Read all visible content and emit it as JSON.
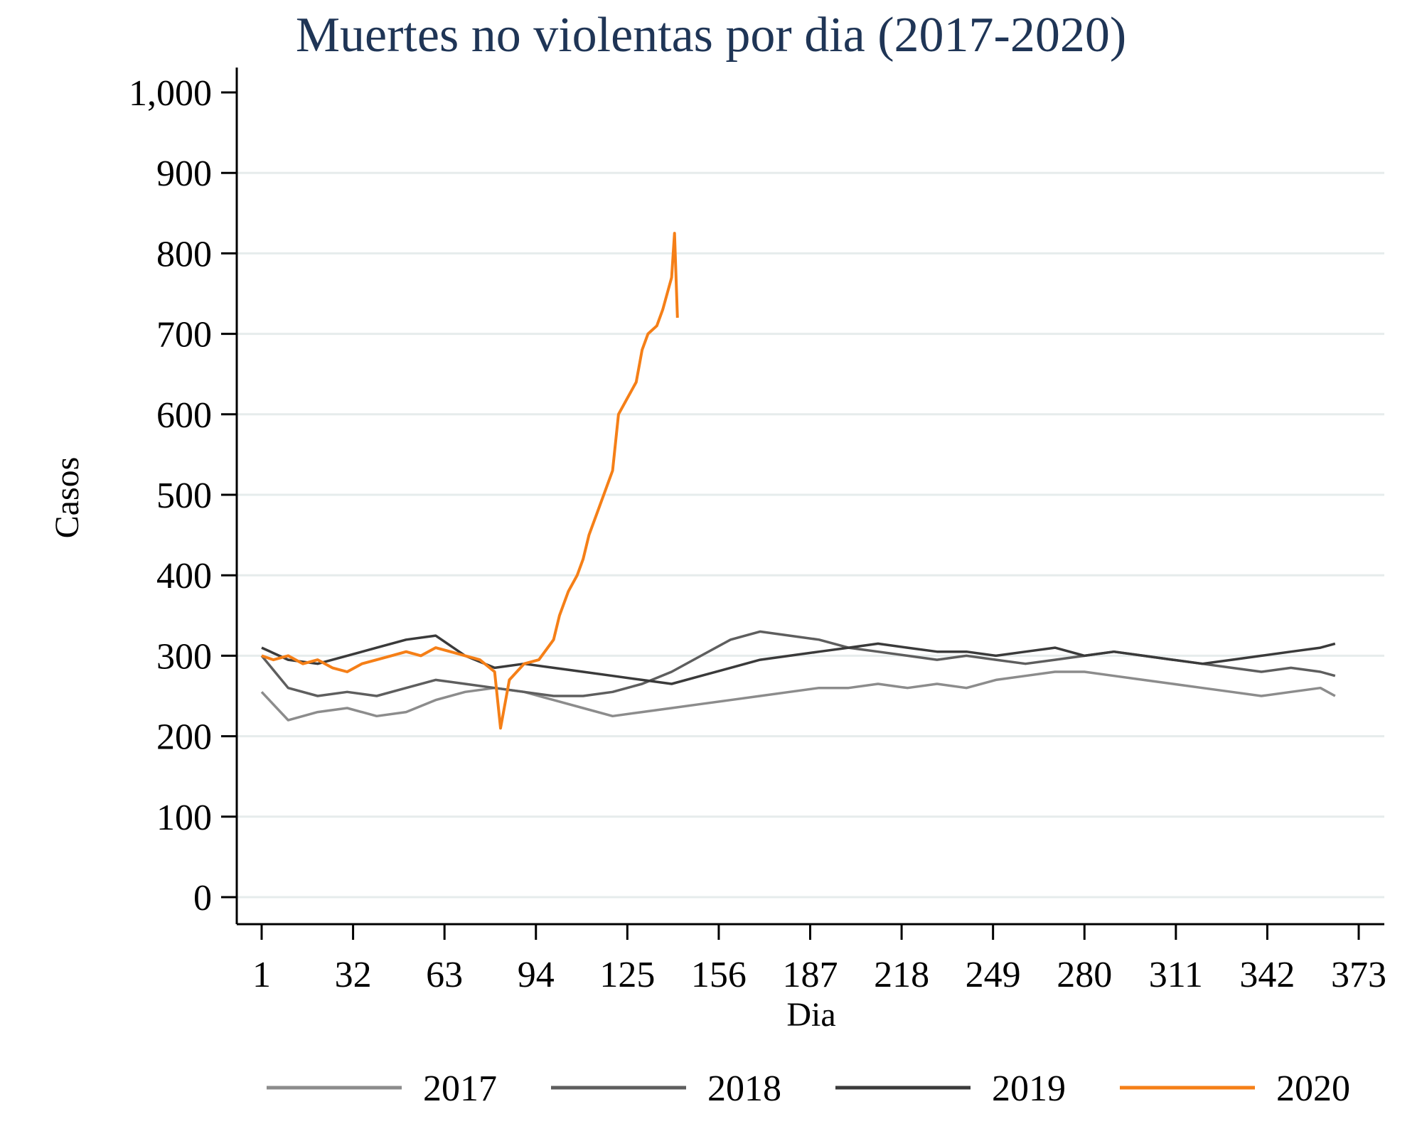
{
  "chart_data": {
    "type": "line",
    "title": "Muertes no violentas por dia (2017-2020)",
    "xlabel": "Dia",
    "ylabel": "Casos",
    "xlim": [
      1,
      373
    ],
    "ylim": [
      0,
      1000
    ],
    "x_ticks": [
      1,
      32,
      63,
      94,
      125,
      156,
      187,
      218,
      249,
      280,
      311,
      342,
      373
    ],
    "x_tick_labels": [
      "1",
      "32",
      "63",
      "94",
      "125",
      "156",
      "187",
      "218",
      "249",
      "280",
      "311",
      "342",
      "373"
    ],
    "y_ticks": [
      0,
      100,
      200,
      300,
      400,
      500,
      600,
      700,
      800,
      900,
      1000
    ],
    "y_tick_labels": [
      "0",
      "100",
      "200",
      "300",
      "400",
      "500",
      "600",
      "700",
      "800",
      "900",
      "1,000"
    ],
    "grid": true,
    "legend_position": "bottom",
    "colors": {
      "2017": "#8c8c8c",
      "2018": "#5e5e5e",
      "2019": "#3a3a3a",
      "2020": "#f57f17"
    },
    "series": [
      {
        "name": "2017",
        "x": [
          1,
          10,
          20,
          30,
          40,
          50,
          60,
          70,
          80,
          90,
          100,
          110,
          120,
          130,
          140,
          150,
          160,
          170,
          180,
          190,
          200,
          210,
          220,
          230,
          240,
          250,
          260,
          270,
          280,
          290,
          300,
          310,
          320,
          330,
          340,
          350,
          360,
          365
        ],
        "y": [
          255,
          220,
          230,
          235,
          225,
          230,
          245,
          255,
          260,
          255,
          245,
          235,
          225,
          230,
          235,
          240,
          245,
          250,
          255,
          260,
          260,
          265,
          260,
          265,
          260,
          270,
          275,
          280,
          280,
          275,
          270,
          265,
          260,
          255,
          250,
          255,
          260,
          250
        ]
      },
      {
        "name": "2018",
        "x": [
          1,
          10,
          20,
          30,
          40,
          50,
          60,
          70,
          80,
          90,
          100,
          110,
          120,
          130,
          140,
          150,
          160,
          170,
          180,
          190,
          200,
          210,
          220,
          230,
          240,
          250,
          260,
          270,
          280,
          290,
          300,
          310,
          320,
          330,
          340,
          350,
          360,
          365
        ],
        "y": [
          300,
          260,
          250,
          255,
          250,
          260,
          270,
          265,
          260,
          255,
          250,
          250,
          255,
          265,
          280,
          300,
          320,
          330,
          325,
          320,
          310,
          305,
          300,
          295,
          300,
          295,
          290,
          295,
          300,
          305,
          300,
          295,
          290,
          285,
          280,
          285,
          280,
          275
        ]
      },
      {
        "name": "2019",
        "x": [
          1,
          10,
          20,
          30,
          40,
          50,
          60,
          70,
          80,
          90,
          100,
          110,
          120,
          130,
          140,
          150,
          160,
          170,
          180,
          190,
          200,
          210,
          220,
          230,
          240,
          250,
          260,
          270,
          280,
          290,
          300,
          310,
          320,
          330,
          340,
          350,
          360,
          365
        ],
        "y": [
          310,
          295,
          290,
          300,
          310,
          320,
          325,
          300,
          285,
          290,
          285,
          280,
          275,
          270,
          265,
          275,
          285,
          295,
          300,
          305,
          310,
          315,
          310,
          305,
          305,
          300,
          305,
          310,
          300,
          305,
          300,
          295,
          290,
          295,
          300,
          305,
          310,
          315
        ]
      },
      {
        "name": "2020",
        "x": [
          1,
          5,
          10,
          15,
          20,
          25,
          30,
          35,
          40,
          45,
          50,
          55,
          60,
          65,
          70,
          75,
          80,
          82,
          85,
          90,
          95,
          100,
          102,
          105,
          108,
          110,
          112,
          115,
          118,
          120,
          122,
          125,
          128,
          130,
          132,
          135,
          137,
          140,
          141,
          142
        ],
        "y": [
          300,
          295,
          300,
          290,
          295,
          285,
          280,
          290,
          295,
          300,
          305,
          300,
          310,
          305,
          300,
          295,
          280,
          210,
          270,
          290,
          295,
          320,
          350,
          380,
          400,
          420,
          450,
          480,
          510,
          530,
          600,
          620,
          640,
          680,
          700,
          710,
          730,
          770,
          825,
          720
        ]
      }
    ]
  }
}
